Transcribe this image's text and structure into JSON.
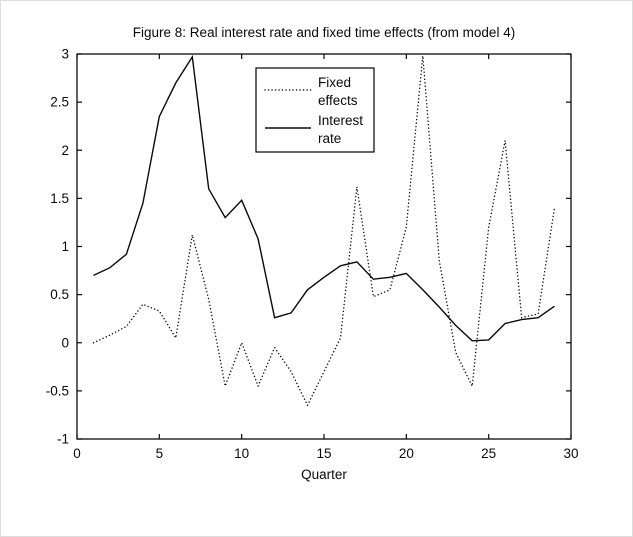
{
  "legend": {
    "entries": [
      {
        "label": "Fixed effects",
        "label_lines": [
          "Fixed",
          "effects"
        ],
        "style": "dotted"
      },
      {
        "label": "Interest rate",
        "label_lines": [
          "Interest",
          "rate"
        ],
        "style": "solid"
      }
    ],
    "position": "upper-left-inside",
    "border_color": "#000000",
    "background": "#ffffff"
  },
  "chart_data": {
    "type": "line",
    "title": "Figure 8: Real interest rate and fixed time effects (from model 4)",
    "xlabel": "Quarter",
    "ylabel": "",
    "xlim": [
      0,
      30
    ],
    "ylim": [
      -1,
      3
    ],
    "x_ticks": [
      0,
      5,
      10,
      15,
      20,
      25,
      30
    ],
    "y_ticks": [
      -1,
      -0.5,
      0,
      0.5,
      1,
      1.5,
      2,
      2.5,
      3
    ],
    "grid": false,
    "box": true,
    "line_color": "#0a0a0a",
    "background": "#ffffff",
    "x": [
      1,
      2,
      3,
      4,
      5,
      6,
      7,
      8,
      9,
      10,
      11,
      12,
      13,
      14,
      15,
      16,
      17,
      18,
      19,
      20,
      21,
      22,
      23,
      24,
      25,
      26,
      27,
      28,
      29
    ],
    "series": [
      {
        "name": "Fixed effects",
        "style": "dotted",
        "values": [
          0.0,
          0.08,
          0.17,
          0.4,
          0.33,
          0.05,
          1.12,
          0.45,
          -0.45,
          0.0,
          -0.45,
          -0.05,
          -0.3,
          -0.65,
          -0.3,
          0.05,
          1.62,
          0.48,
          0.55,
          1.2,
          2.98,
          0.85,
          -0.1,
          -0.45,
          1.2,
          2.1,
          0.26,
          0.3,
          1.4
        ]
      },
      {
        "name": "Interest rate",
        "style": "solid",
        "values": [
          0.7,
          0.78,
          0.92,
          1.45,
          2.35,
          2.7,
          2.97,
          1.6,
          1.3,
          1.48,
          1.08,
          0.26,
          0.31,
          0.55,
          0.68,
          0.8,
          0.84,
          0.66,
          0.68,
          0.72,
          0.55,
          0.37,
          0.18,
          0.02,
          0.03,
          0.2,
          0.24,
          0.26,
          0.38
        ]
      }
    ]
  }
}
